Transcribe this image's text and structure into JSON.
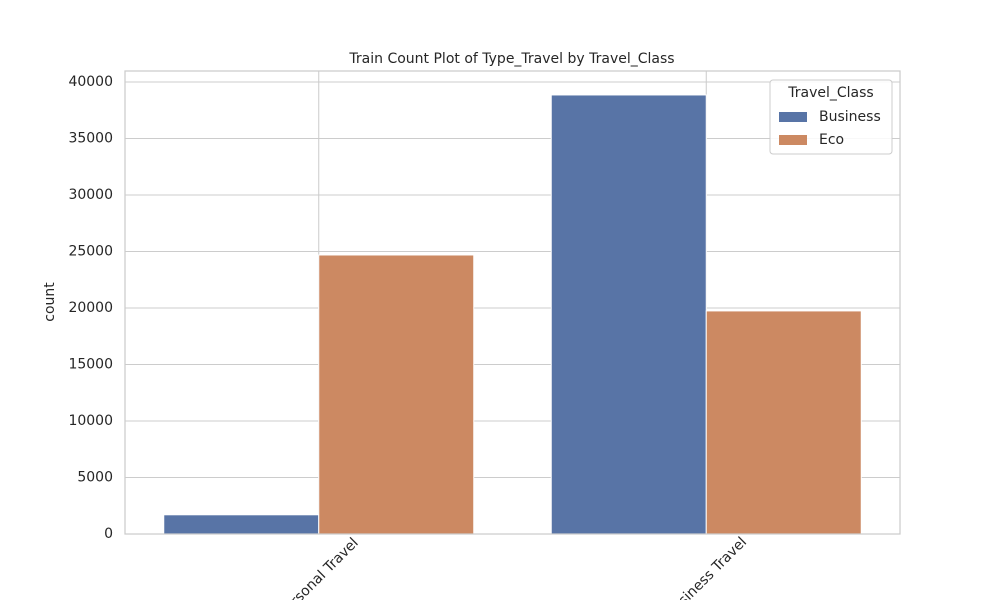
{
  "chart_data": {
    "type": "bar",
    "title": "Train Count Plot of Type_Travel by Travel_Class",
    "y_label": "count",
    "categories": [
      "Personal Travel",
      "Business Travel"
    ],
    "legend_title": "Travel_Class",
    "legend_position": "upper right",
    "series": [
      {
        "name": "Business",
        "color": "#5874a6",
        "values": [
          1700,
          38850
        ]
      },
      {
        "name": "Eco",
        "color": "#cc8962",
        "values": [
          24690,
          19740
        ]
      }
    ],
    "ylim": [
      0,
      40970
    ],
    "yticks": [
      0,
      5000,
      10000,
      15000,
      20000,
      25000,
      30000,
      35000,
      40000
    ],
    "grid": true
  }
}
